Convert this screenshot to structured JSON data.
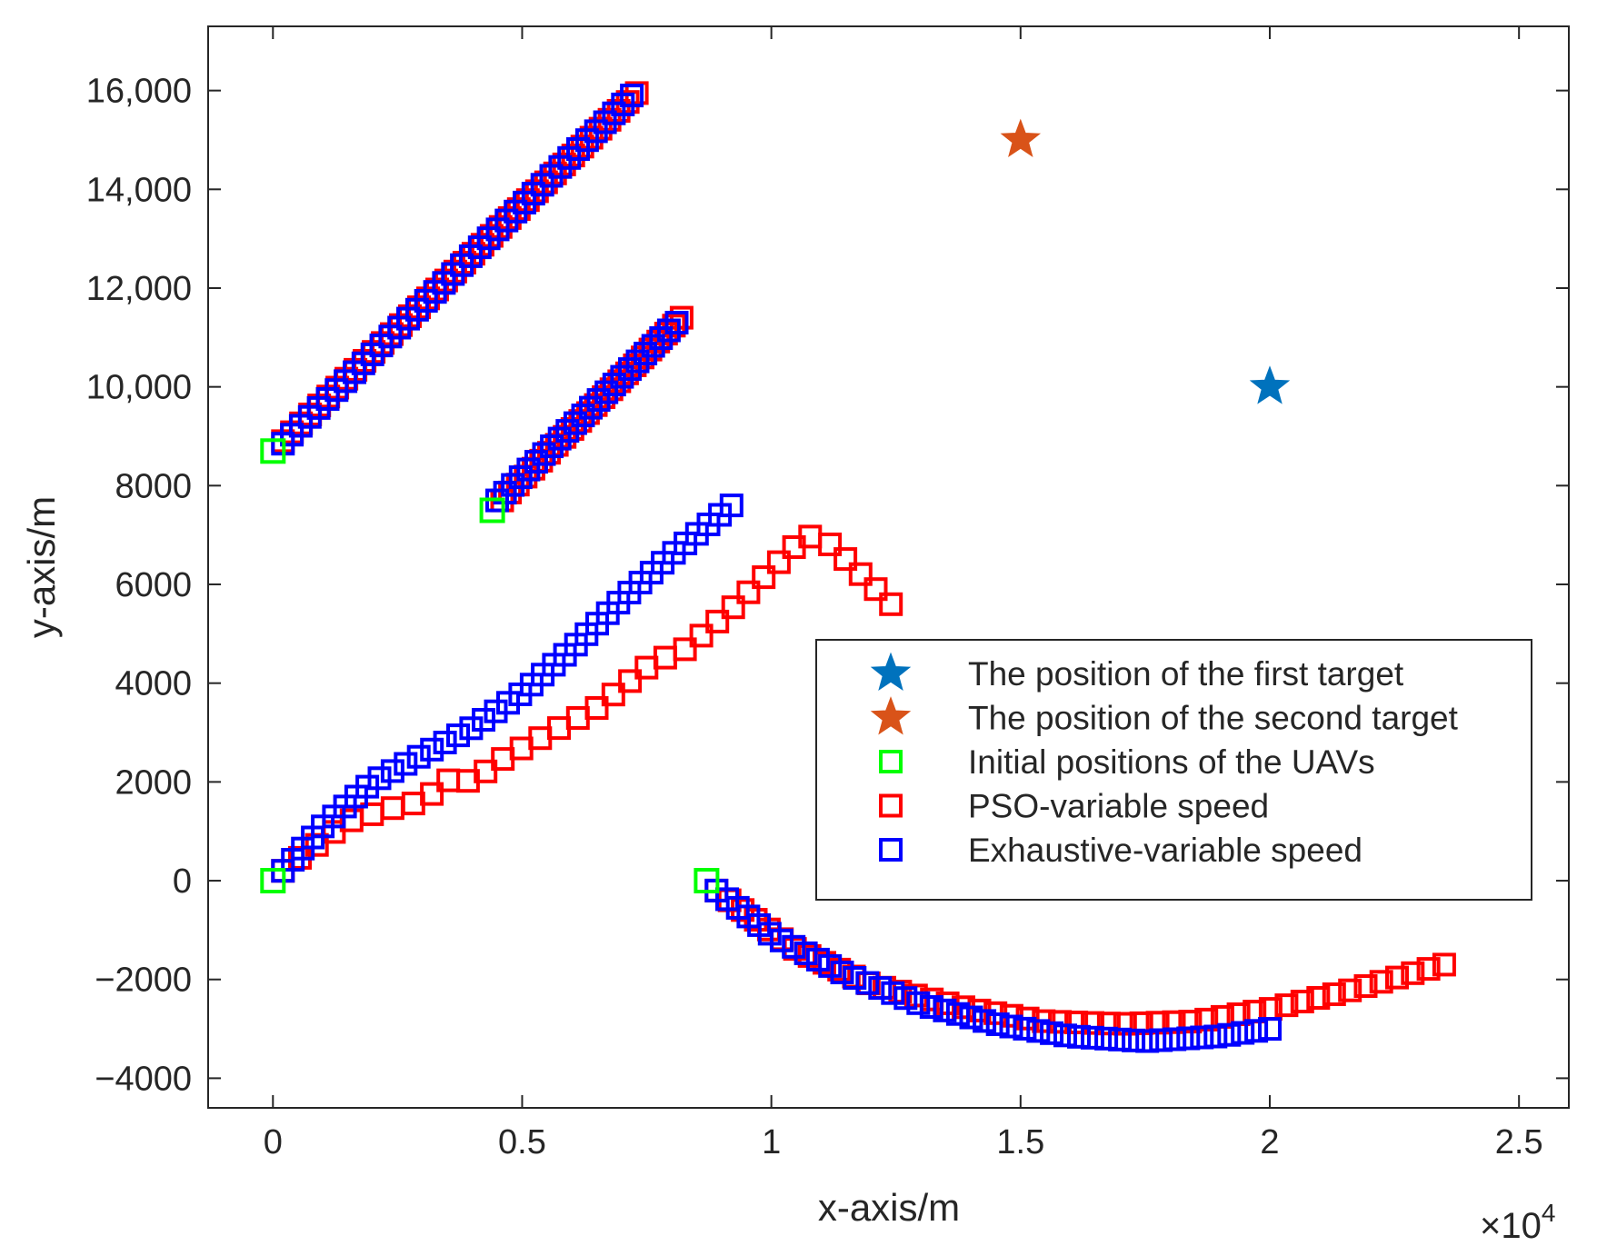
{
  "chart_data": {
    "type": "scatter",
    "xlabel": "x-axis/m",
    "ylabel": "y-axis/m",
    "x_exponent_label": "×10",
    "x_exponent_power": "4",
    "xlim": [
      -1300,
      26000
    ],
    "ylim": [
      -4600,
      17300
    ],
    "x_ticks": [
      0,
      5000,
      10000,
      15000,
      20000,
      25000
    ],
    "x_tick_labels": [
      "0",
      "0.5",
      "1",
      "1.5",
      "2",
      "2.5"
    ],
    "y_ticks": [
      -4000,
      -2000,
      0,
      2000,
      4000,
      6000,
      8000,
      10000,
      12000,
      14000,
      16000
    ],
    "y_tick_labels": [
      "−4000",
      "−2000",
      "0",
      "2000",
      "4000",
      "6000",
      "8000",
      "10,000",
      "12,000",
      "14,000",
      "16,000"
    ],
    "grid": false,
    "legend_position": "center-right",
    "legend": [
      {
        "label": "The position of the first target",
        "marker": "star",
        "color": "#0072BD"
      },
      {
        "label": "The position of the second target",
        "marker": "star",
        "color": "#D95319"
      },
      {
        "label": "Initial positions of the UAVs",
        "marker": "square",
        "color": "#00FF00"
      },
      {
        "label": "PSO-variable speed",
        "marker": "square",
        "color": "#FF0000"
      },
      {
        "label": "Exhaustive-variable speed",
        "marker": "square",
        "color": "#0000FF"
      }
    ],
    "series": [
      {
        "name": "The position of the first target",
        "marker": "star",
        "color": "#0072BD",
        "points": [
          [
            20000,
            10000
          ]
        ]
      },
      {
        "name": "The position of the second target",
        "marker": "star",
        "color": "#D95319",
        "points": [
          [
            15000,
            15000
          ]
        ]
      },
      {
        "name": "Initial positions of the UAVs",
        "marker": "square",
        "color": "#00FF00",
        "points": [
          [
            0,
            8700
          ],
          [
            4400,
            7500
          ],
          [
            0,
            0
          ],
          [
            8700,
            0
          ]
        ]
      },
      {
        "name": "PSO-variable speed",
        "marker": "square",
        "color": "#FF0000",
        "tracks": [
          {
            "start": [
              200,
              8900
            ],
            "end": [
              7300,
              15950
            ],
            "n": 40
          },
          {
            "start": [
              4600,
              7700
            ],
            "end": [
              8200,
              11400
            ],
            "n": 24
          },
          {
            "waypoints": [
              [
                200,
                200
              ],
              [
                1500,
                1200
              ],
              [
                2500,
                1500
              ],
              [
                3000,
                1600
              ],
              [
                3600,
                2100
              ],
              [
                4000,
                2000
              ],
              [
                4500,
                2400
              ],
              [
                5200,
                2800
              ],
              [
                6500,
                3500
              ],
              [
                7600,
                4400
              ],
              [
                8300,
                4700
              ],
              [
                9200,
                5500
              ],
              [
                10000,
                6300
              ],
              [
                10700,
                7000
              ],
              [
                11200,
                6800
              ],
              [
                11800,
                6200
              ],
              [
                12400,
                5600
              ]
            ],
            "n": 36
          },
          {
            "waypoints": [
              [
                8900,
                -200
              ],
              [
                10500,
                -1400
              ],
              [
                12000,
                -2100
              ],
              [
                14000,
                -2600
              ],
              [
                15500,
                -2850
              ],
              [
                17000,
                -2900
              ],
              [
                18500,
                -2850
              ],
              [
                20000,
                -2600
              ],
              [
                21500,
                -2250
              ],
              [
                23500,
                -1700
              ]
            ],
            "n": 48
          }
        ]
      },
      {
        "name": "Exhaustive-variable speed",
        "marker": "square",
        "color": "#0000FF",
        "tracks": [
          {
            "start": [
              200,
              8850
            ],
            "end": [
              7200,
              15900
            ],
            "n": 40
          },
          {
            "start": [
              4500,
              7700
            ],
            "end": [
              8100,
              11300
            ],
            "n": 24
          },
          {
            "waypoints": [
              [
                200,
                200
              ],
              [
                1000,
                1100
              ],
              [
                2000,
                2000
              ],
              [
                4000,
                3100
              ],
              [
                5000,
                3800
              ],
              [
                6000,
                4700
              ],
              [
                7000,
                5700
              ],
              [
                8000,
                6600
              ],
              [
                9200,
                7600
              ]
            ],
            "n": 40
          },
          {
            "waypoints": [
              [
                8900,
                -200
              ],
              [
                10000,
                -1100
              ],
              [
                11500,
                -1900
              ],
              [
                13000,
                -2500
              ],
              [
                14500,
                -2900
              ],
              [
                16000,
                -3150
              ],
              [
                17500,
                -3250
              ],
              [
                19000,
                -3150
              ],
              [
                20000,
                -3000
              ]
            ],
            "n": 44
          }
        ]
      }
    ]
  }
}
